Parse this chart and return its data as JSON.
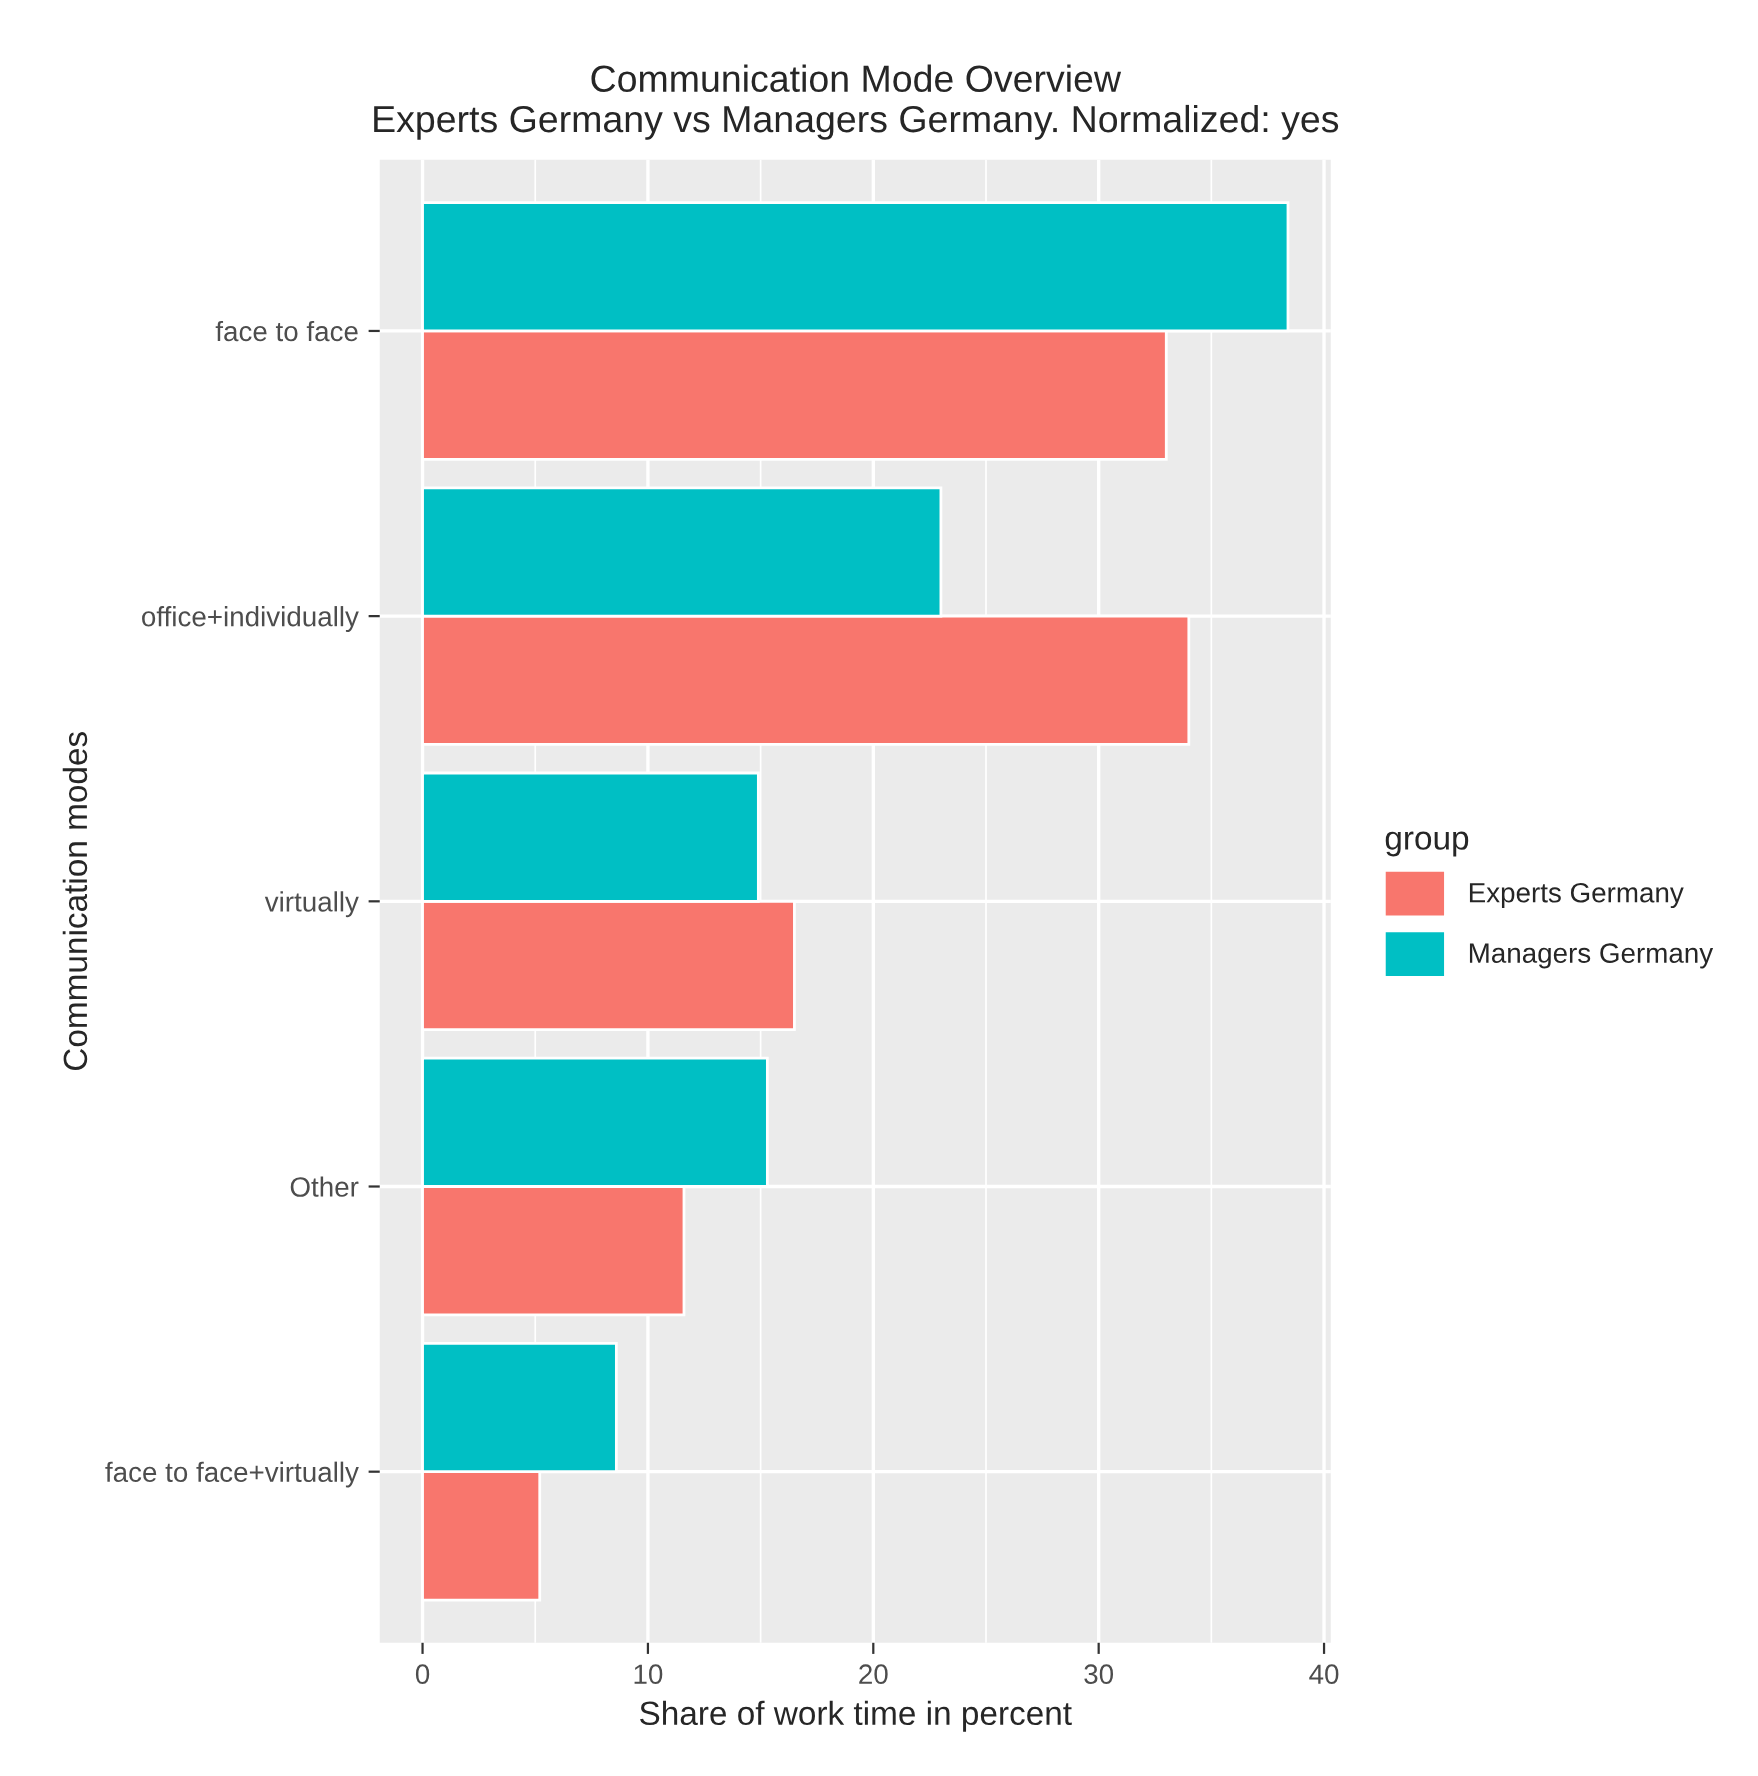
{
  "chart_data": {
    "type": "bar",
    "orientation": "horizontal",
    "title": "Communication Mode Overview\nExperts Germany vs Managers Germany. Normalized: yes",
    "xlabel": "Share of work time in percent",
    "ylabel": "Communication modes",
    "categories": [
      "face to face",
      "office+individually",
      "virtually",
      "Other",
      "face to face+virtually"
    ],
    "series": [
      {
        "name": "Experts Germany",
        "color": "#f8766d",
        "values": [
          33.0,
          34.0,
          16.5,
          11.6,
          5.2
        ]
      },
      {
        "name": "Managers Germany",
        "color": "#00bfc4",
        "values": [
          38.4,
          23.0,
          14.9,
          15.3,
          8.6
        ]
      }
    ],
    "xlim": [
      -1.9,
      40.3
    ],
    "xticks": [
      0,
      10,
      20,
      30,
      40
    ],
    "grid": true,
    "legend": "right",
    "legend_title": "group"
  }
}
